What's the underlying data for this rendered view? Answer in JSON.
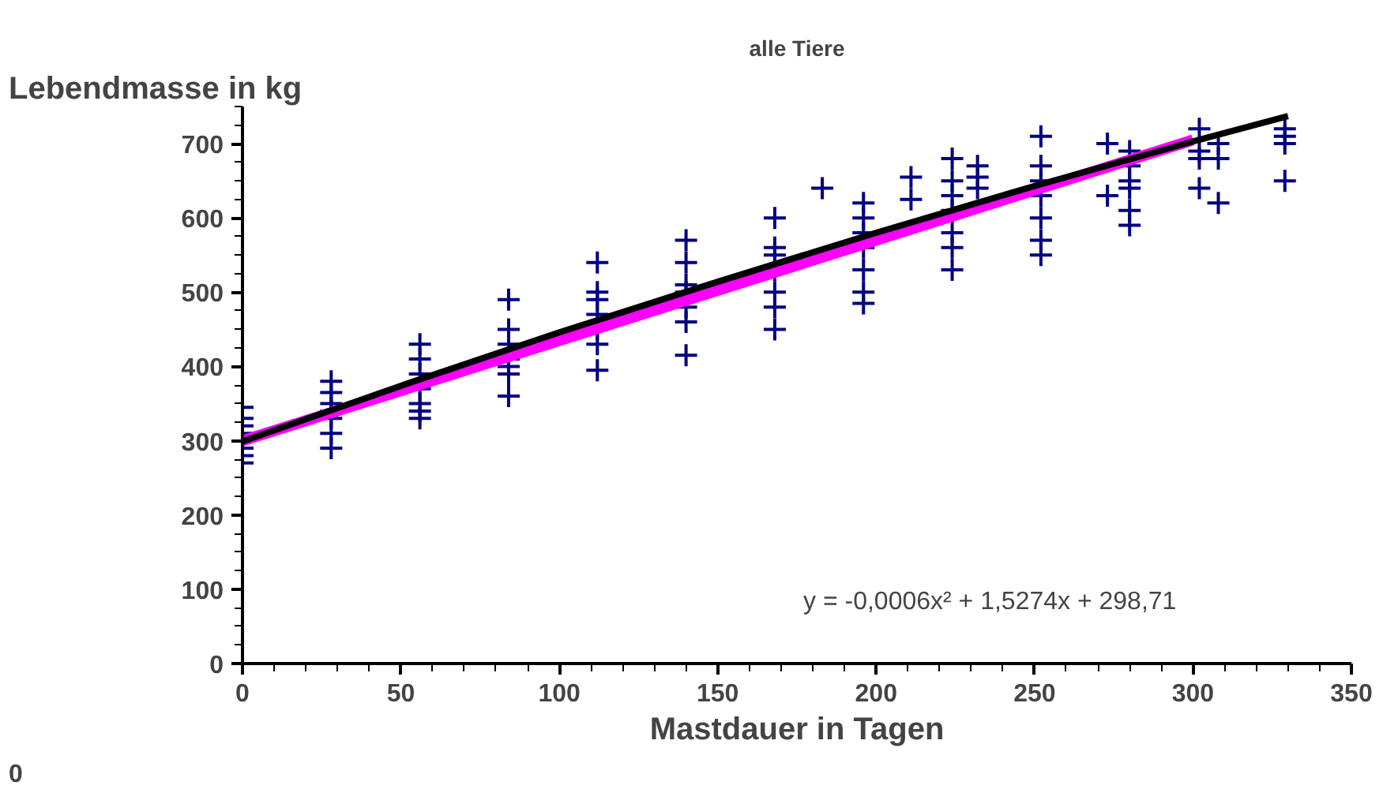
{
  "chart_data": {
    "type": "scatter",
    "title": "alle Tiere",
    "xlabel": "Mastdauer in Tagen",
    "ylabel": "Lebendmasse in kg",
    "annotations": [
      "y = -0,0006x² + 1,5274x + 298,71",
      "0"
    ],
    "xlim": [
      0,
      350
    ],
    "xticks": [
      0,
      50,
      100,
      150,
      200,
      250,
      300,
      350
    ],
    "ylim": [
      0,
      750
    ],
    "yticks": [
      0,
      100,
      200,
      300,
      400,
      500,
      600,
      700
    ],
    "grid": false,
    "marker": "cross",
    "series": [
      {
        "color": "#000080",
        "x": [
          0,
          0,
          0,
          0,
          0,
          0,
          0,
          28,
          28,
          28,
          28,
          28,
          28,
          28,
          56,
          56,
          56,
          56,
          56,
          56,
          56,
          84,
          84,
          84,
          84,
          84,
          84,
          84,
          112,
          112,
          112,
          112,
          112,
          112,
          112,
          140,
          140,
          140,
          140,
          140,
          140,
          140,
          168,
          168,
          168,
          168,
          168,
          168,
          168,
          183,
          196,
          196,
          196,
          196,
          196,
          196,
          196,
          211,
          211,
          224,
          224,
          224,
          224,
          224,
          224,
          224,
          232,
          232,
          232,
          252,
          252,
          252,
          252,
          252,
          252,
          252,
          273,
          273,
          280,
          280,
          280,
          280,
          280,
          280,
          302,
          302,
          302,
          302,
          308,
          308,
          308,
          329,
          329,
          329,
          329
        ],
        "values": [
          345,
          330,
          320,
          310,
          290,
          280,
          270,
          380,
          365,
          350,
          340,
          330,
          310,
          290,
          430,
          410,
          390,
          370,
          350,
          340,
          330,
          490,
          450,
          430,
          410,
          400,
          390,
          360,
          540,
          500,
          490,
          470,
          450,
          430,
          395,
          570,
          540,
          510,
          500,
          480,
          460,
          415,
          600,
          560,
          550,
          530,
          500,
          480,
          450,
          640,
          620,
          600,
          580,
          560,
          530,
          500,
          485,
          655,
          625,
          680,
          650,
          630,
          610,
          580,
          560,
          530,
          670,
          655,
          640,
          710,
          670,
          650,
          630,
          600,
          570,
          550,
          700,
          630,
          690,
          670,
          650,
          640,
          610,
          590,
          720,
          690,
          680,
          640,
          700,
          680,
          620,
          720,
          710,
          700,
          650
        ]
      },
      {
        "color": "#ff00ff",
        "type": "line",
        "marker": "none",
        "x": [
          0,
          300
        ],
        "values": [
          300,
          705
        ]
      },
      {
        "color": "#000000",
        "type": "line",
        "marker": "none",
        "x": [
          0,
          50,
          100,
          150,
          200,
          250,
          300,
          330
        ],
        "values": [
          299,
          374,
          446,
          514,
          580,
          643,
          703,
          737
        ]
      }
    ]
  }
}
